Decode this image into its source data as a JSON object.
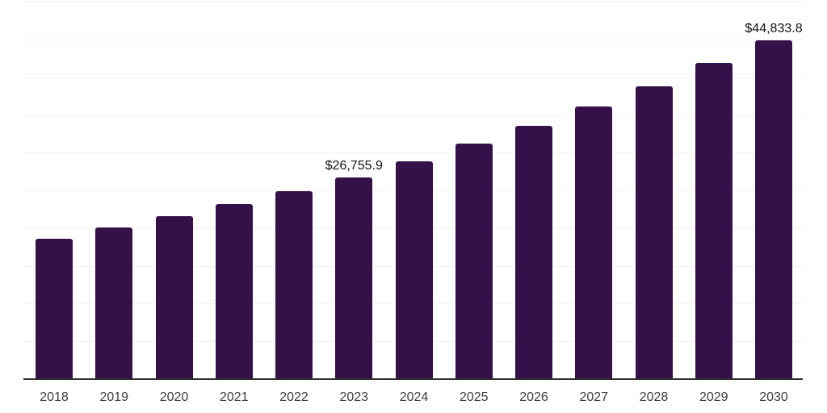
{
  "chart_data": {
    "type": "bar",
    "title": "",
    "xlabel": "",
    "ylabel": "",
    "categories": [
      "2018",
      "2019",
      "2020",
      "2021",
      "2022",
      "2023",
      "2024",
      "2025",
      "2026",
      "2027",
      "2028",
      "2029",
      "2030"
    ],
    "values": [
      18600,
      20100,
      21600,
      23200,
      24900,
      26755.9,
      28800,
      31150,
      33550,
      36150,
      38800,
      41900,
      44833.8
    ],
    "data_labels": [
      {
        "index": 5,
        "text": "$26,755.9"
      },
      {
        "index": 12,
        "text": "$44,833.8"
      }
    ],
    "ylim": [
      0,
      50000
    ],
    "grid_step": 5000,
    "grid": "horizontal gridlines only, no y-axis tick labels",
    "legend_position": "none",
    "colors": {
      "bar": "#361149",
      "gridline": "#f2f2f2",
      "axis_line": "#2e2e2e",
      "tick_label": "#3d3d3d",
      "data_label": "#121212",
      "background": "#ffffff"
    }
  }
}
